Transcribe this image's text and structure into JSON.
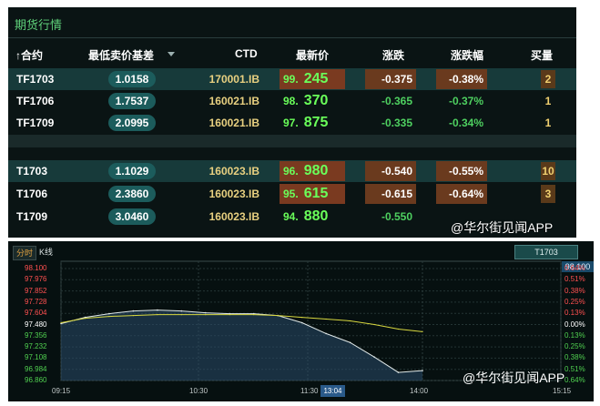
{
  "panel_title": "期货行情",
  "headers": {
    "code": "↑合约",
    "base": "最低卖价基差",
    "ctd": "CTD",
    "price": "最新价",
    "chg": "涨跌",
    "pct": "涨跌幅",
    "vol": "买量"
  },
  "rows": [
    {
      "code": "TF1703",
      "base": "1.0158",
      "ctd": "170001.IB",
      "price_int": "99.",
      "price_dec": "245",
      "chg": "-0.375",
      "pct": "-0.38%",
      "vol": "2",
      "hl": true
    },
    {
      "code": "TF1706",
      "base": "1.7537",
      "ctd": "160021.IB",
      "price_int": "98.",
      "price_dec": "370",
      "chg": "-0.365",
      "pct": "-0.37%",
      "vol": "1",
      "hl": false
    },
    {
      "code": "TF1709",
      "base": "2.0995",
      "ctd": "160021.IB",
      "price_int": "97.",
      "price_dec": "875",
      "chg": "-0.335",
      "pct": "-0.34%",
      "vol": "1",
      "hl": false
    },
    {
      "code": "T1703",
      "base": "1.1029",
      "ctd": "160023.IB",
      "price_int": "96.",
      "price_dec": "980",
      "chg": "-0.540",
      "pct": "-0.55%",
      "vol": "10",
      "hl": true
    },
    {
      "code": "T1706",
      "base": "2.3860",
      "ctd": "160023.IB",
      "price_int": "95.",
      "price_dec": "615",
      "chg": "-0.615",
      "pct": "-0.64%",
      "vol": "3",
      "hl": true
    },
    {
      "code": "T1709",
      "base": "3.0460",
      "ctd": "160023.IB",
      "price_int": "94.",
      "price_dec": "880",
      "chg": "-0.550",
      "pct": "",
      "vol": "",
      "hl": false
    }
  ],
  "watermark": "@华尔街见闻APP",
  "chart": {
    "tabs": [
      "分时",
      "K线"
    ],
    "symbol": "T1703",
    "current_price": "98.100",
    "price_labels": [
      "98.100",
      "97.976",
      "97.852",
      "97.728",
      "97.604",
      "97.480",
      "97.356",
      "97.232",
      "97.108",
      "96.984",
      "96.860"
    ],
    "pct_labels": [
      "0.64%",
      "0.51%",
      "0.38%",
      "0.25%",
      "0.13%",
      "0.00%",
      "0.13%",
      "0.25%",
      "0.38%",
      "0.51%",
      "0.64%"
    ],
    "time_labels": [
      "09:15",
      "10:30",
      "11:30",
      "14:00",
      "15:15"
    ],
    "cursor_time": "13:04",
    "colors": {
      "up": "#ff5050",
      "down": "#50d050",
      "flat": "#ffffff",
      "price_line": "#e0e8e8",
      "avg_line": "#d8d840",
      "fill": "#2a4a6a"
    }
  },
  "chart_data": {
    "type": "line",
    "title": "",
    "xlabel": "",
    "ylabel": "",
    "ylim": [
      96.86,
      98.1
    ],
    "x": [
      "09:15",
      "09:30",
      "09:45",
      "10:00",
      "10:15",
      "10:30",
      "10:45",
      "11:00",
      "11:15",
      "11:30",
      "13:00",
      "13:15",
      "13:30",
      "13:45",
      "14:00",
      "14:15"
    ],
    "series": [
      {
        "values": [
          97.49,
          97.56,
          97.6,
          97.63,
          97.64,
          97.63,
          97.61,
          97.6,
          97.6,
          97.58,
          97.5,
          97.38,
          97.28,
          97.12,
          96.95,
          96.97
        ]
      },
      {
        "values": [
          97.5,
          97.55,
          97.57,
          97.58,
          97.59,
          97.59,
          97.59,
          97.59,
          97.59,
          97.58,
          97.56,
          97.54,
          97.52,
          97.48,
          97.43,
          97.4
        ]
      }
    ]
  }
}
